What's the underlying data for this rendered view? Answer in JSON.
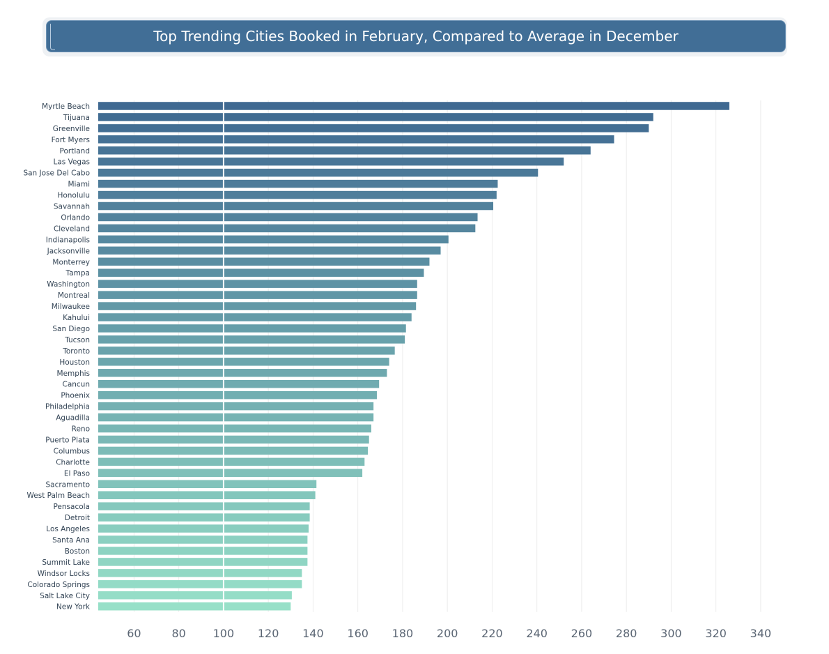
{
  "chart_data": {
    "type": "bar",
    "orientation": "horizontal",
    "title": "Top Trending Cities Booked in February, Compared to Average in December",
    "reference_line": 100,
    "xlim": [
      44,
      345
    ],
    "xticks": [
      60,
      80,
      100,
      120,
      140,
      160,
      180,
      200,
      220,
      240,
      260,
      280,
      300,
      320,
      340
    ],
    "grid": true,
    "legend": "none",
    "colors": {
      "top": "#3f6991",
      "bottom": "#97e0c8",
      "reference": "#ffffff",
      "grid": "#ececec"
    },
    "categories": [
      "Myrtle Beach",
      "Tijuana",
      "Greenville",
      "Fort Myers",
      "Portland",
      "Las Vegas",
      "San Jose Del Cabo",
      "Miami",
      "Honolulu",
      "Savannah",
      "Orlando",
      "Cleveland",
      "Indianapolis",
      "Jacksonville",
      "Monterrey",
      "Tampa",
      "Washington",
      "Montreal",
      "Milwaukee",
      "Kahului",
      "San Diego",
      "Tucson",
      "Toronto",
      "Houston",
      "Memphis",
      "Cancun",
      "Phoenix",
      "Philadelphia",
      "Aguadilla",
      "Reno",
      "Puerto Plata",
      "Columbus",
      "Charlotte",
      "El Paso",
      "Sacramento",
      "West Palm Beach",
      "Pensacola",
      "Detroit",
      "Los Angeles",
      "Santa Ana",
      "Boston",
      "Summit Lake",
      "Windsor Locks",
      "Colorado Springs",
      "Salt Lake City",
      "New York"
    ],
    "values": [
      326,
      292,
      290,
      274.5,
      264,
      252,
      240.5,
      222.5,
      222,
      220.5,
      213.5,
      212.5,
      200.5,
      197,
      192,
      189.5,
      186.5,
      186.5,
      186,
      184,
      181.5,
      181,
      176.5,
      174,
      173,
      169.5,
      168.5,
      167,
      167,
      166,
      165,
      164.5,
      163,
      162,
      141.5,
      141,
      138.5,
      138.5,
      138,
      137.5,
      137.5,
      137.5,
      135,
      135,
      130.5,
      130
    ]
  }
}
